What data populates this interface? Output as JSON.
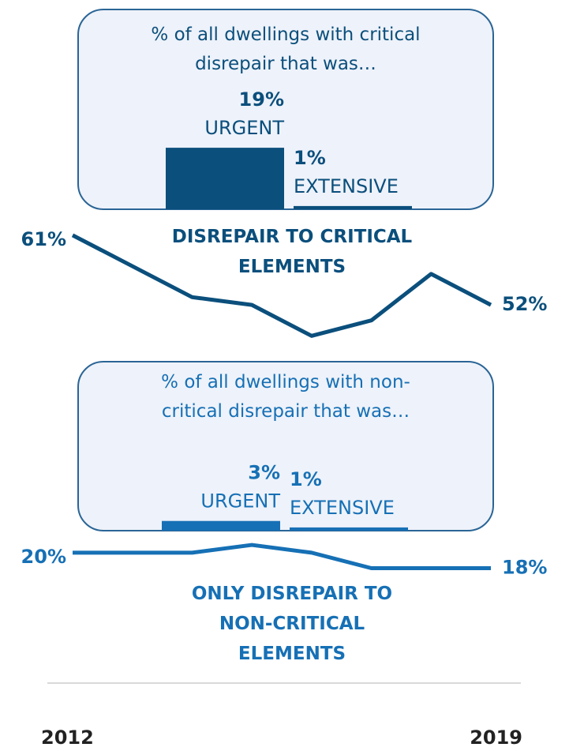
{
  "chart_data": [
    {
      "type": "line",
      "categories": [
        "2012",
        null,
        null,
        null,
        null,
        null,
        null,
        "2019"
      ],
      "ylim": [
        0,
        70
      ],
      "series": [
        {
          "name": "DISREPAIR TO CRITICAL ELEMENTS",
          "color": "#0b4f7c",
          "values": [
            61,
            57,
            53,
            52,
            48,
            50,
            56,
            52
          ],
          "value_labels": [
            "61%",
            null,
            null,
            null,
            null,
            null,
            null,
            "52%"
          ]
        },
        {
          "name": "ONLY DISREPAIR TO NON-CRITICAL ELEMENTS",
          "color": "#1670b5",
          "values": [
            20,
            20,
            20,
            21,
            20,
            18,
            18,
            18
          ],
          "value_labels": [
            "20%",
            null,
            null,
            null,
            null,
            null,
            null,
            "18%"
          ]
        }
      ]
    },
    {
      "type": "bar",
      "title": "% of all dwellings with critical disrepair that was…",
      "categories": [
        "URGENT",
        "EXTENSIVE"
      ],
      "values": [
        19,
        1
      ],
      "value_labels": [
        "19%",
        "1%"
      ],
      "color": "#0b4f7c",
      "ylim": [
        0,
        20
      ]
    },
    {
      "type": "bar",
      "title": "% of all dwellings with non-critical disrepair that was…",
      "categories": [
        "URGENT",
        "EXTENSIVE"
      ],
      "values": [
        3,
        1
      ],
      "value_labels": [
        "3%",
        "1%"
      ],
      "color": "#1670b5",
      "ylim": [
        0,
        20
      ]
    }
  ]
}
